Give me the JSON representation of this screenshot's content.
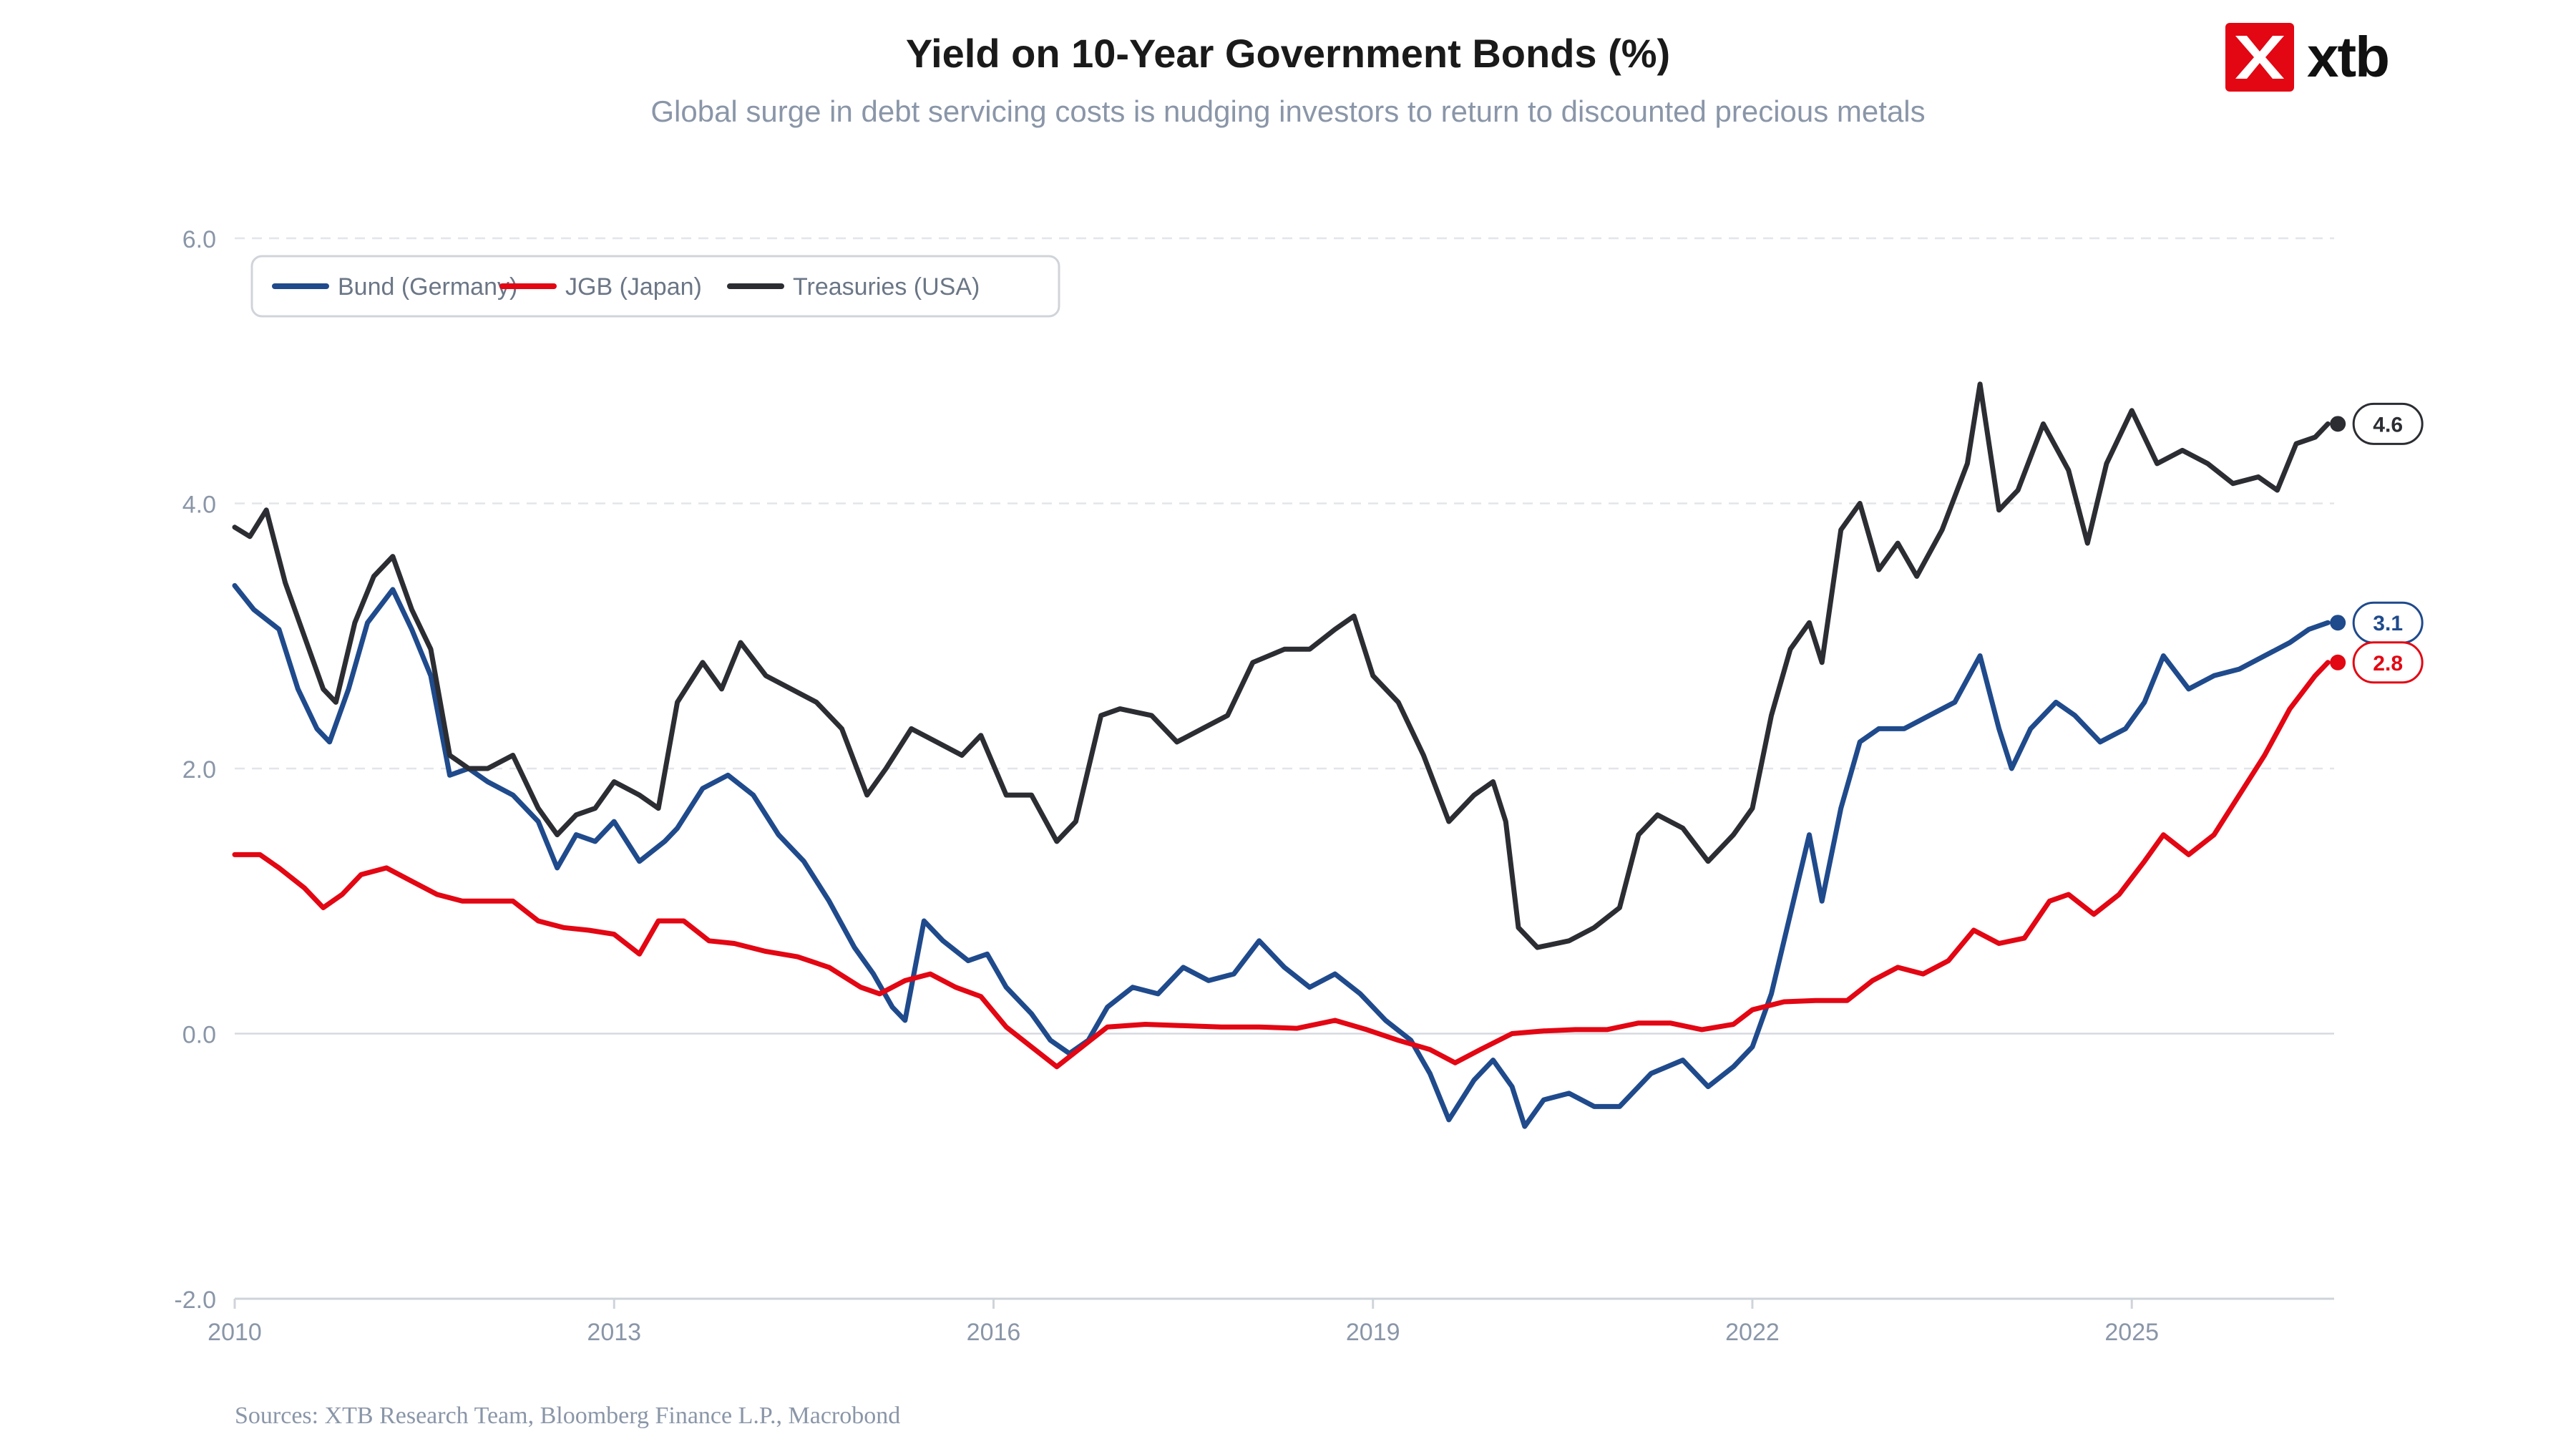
{
  "chart_data": {
    "type": "line",
    "title": "Yield on 10-Year Government Bonds (%)",
    "subtitle": "Global surge in debt servicing costs is nudging investors to return to discounted precious metals",
    "xlabel": "",
    "ylabel": "",
    "xlim": [
      2010.0,
      2026.6
    ],
    "ylim": [
      -2.0,
      6.0
    ],
    "x_ticks": [
      2010,
      2013,
      2016,
      2019,
      2022,
      2025
    ],
    "x_tick_labels": [
      "2010",
      "2013",
      "2016",
      "2019",
      "2022",
      "2025"
    ],
    "y_ticks": [
      -2,
      0,
      2,
      4,
      6
    ],
    "y_tick_labels": [
      "-2.0",
      "0.0",
      "2.0",
      "4.0",
      "6.0"
    ],
    "grid": true,
    "legend_position": "top-left",
    "series": [
      {
        "name": "Bund (Germany)",
        "color": "#1f4a8c",
        "end_label": "3.1",
        "points": [
          [
            2010.0,
            3.38
          ],
          [
            2010.15,
            3.2
          ],
          [
            2010.35,
            3.05
          ],
          [
            2010.5,
            2.6
          ],
          [
            2010.65,
            2.3
          ],
          [
            2010.75,
            2.2
          ],
          [
            2010.9,
            2.6
          ],
          [
            2011.05,
            3.1
          ],
          [
            2011.25,
            3.35
          ],
          [
            2011.4,
            3.05
          ],
          [
            2011.55,
            2.7
          ],
          [
            2011.7,
            1.95
          ],
          [
            2011.85,
            2.0
          ],
          [
            2012.0,
            1.9
          ],
          [
            2012.2,
            1.8
          ],
          [
            2012.4,
            1.6
          ],
          [
            2012.55,
            1.25
          ],
          [
            2012.7,
            1.5
          ],
          [
            2012.85,
            1.45
          ],
          [
            2013.0,
            1.6
          ],
          [
            2013.2,
            1.3
          ],
          [
            2013.4,
            1.45
          ],
          [
            2013.5,
            1.55
          ],
          [
            2013.7,
            1.85
          ],
          [
            2013.9,
            1.95
          ],
          [
            2014.1,
            1.8
          ],
          [
            2014.3,
            1.5
          ],
          [
            2014.5,
            1.3
          ],
          [
            2014.7,
            1.0
          ],
          [
            2014.9,
            0.65
          ],
          [
            2015.05,
            0.45
          ],
          [
            2015.2,
            0.2
          ],
          [
            2015.3,
            0.1
          ],
          [
            2015.45,
            0.85
          ],
          [
            2015.6,
            0.7
          ],
          [
            2015.8,
            0.55
          ],
          [
            2015.95,
            0.6
          ],
          [
            2016.1,
            0.35
          ],
          [
            2016.3,
            0.15
          ],
          [
            2016.45,
            -0.05
          ],
          [
            2016.6,
            -0.15
          ],
          [
            2016.75,
            -0.05
          ],
          [
            2016.9,
            0.2
          ],
          [
            2017.1,
            0.35
          ],
          [
            2017.3,
            0.3
          ],
          [
            2017.5,
            0.5
          ],
          [
            2017.7,
            0.4
          ],
          [
            2017.9,
            0.45
          ],
          [
            2018.1,
            0.7
          ],
          [
            2018.3,
            0.5
          ],
          [
            2018.5,
            0.35
          ],
          [
            2018.7,
            0.45
          ],
          [
            2018.9,
            0.3
          ],
          [
            2019.1,
            0.1
          ],
          [
            2019.3,
            -0.05
          ],
          [
            2019.45,
            -0.3
          ],
          [
            2019.6,
            -0.65
          ],
          [
            2019.8,
            -0.35
          ],
          [
            2019.95,
            -0.2
          ],
          [
            2020.1,
            -0.4
          ],
          [
            2020.2,
            -0.7
          ],
          [
            2020.35,
            -0.5
          ],
          [
            2020.55,
            -0.45
          ],
          [
            2020.75,
            -0.55
          ],
          [
            2020.95,
            -0.55
          ],
          [
            2021.2,
            -0.3
          ],
          [
            2021.45,
            -0.2
          ],
          [
            2021.65,
            -0.4
          ],
          [
            2021.85,
            -0.25
          ],
          [
            2022.0,
            -0.1
          ],
          [
            2022.15,
            0.3
          ],
          [
            2022.3,
            0.9
          ],
          [
            2022.45,
            1.5
          ],
          [
            2022.55,
            1.0
          ],
          [
            2022.7,
            1.7
          ],
          [
            2022.85,
            2.2
          ],
          [
            2023.0,
            2.3
          ],
          [
            2023.2,
            2.3
          ],
          [
            2023.4,
            2.4
          ],
          [
            2023.6,
            2.5
          ],
          [
            2023.8,
            2.85
          ],
          [
            2023.95,
            2.3
          ],
          [
            2024.05,
            2.0
          ],
          [
            2024.2,
            2.3
          ],
          [
            2024.4,
            2.5
          ],
          [
            2024.55,
            2.4
          ],
          [
            2024.75,
            2.2
          ],
          [
            2024.95,
            2.3
          ],
          [
            2025.1,
            2.5
          ],
          [
            2025.25,
            2.85
          ],
          [
            2025.45,
            2.6
          ],
          [
            2025.65,
            2.7
          ],
          [
            2025.85,
            2.75
          ],
          [
            2026.05,
            2.85
          ],
          [
            2026.25,
            2.95
          ],
          [
            2026.4,
            3.05
          ],
          [
            2026.55,
            3.1
          ]
        ]
      },
      {
        "name": "JGB (Japan)",
        "color": "#e30613",
        "end_label": "2.8",
        "points": [
          [
            2010.0,
            1.35
          ],
          [
            2010.2,
            1.35
          ],
          [
            2010.35,
            1.25
          ],
          [
            2010.55,
            1.1
          ],
          [
            2010.7,
            0.95
          ],
          [
            2010.85,
            1.05
          ],
          [
            2011.0,
            1.2
          ],
          [
            2011.2,
            1.25
          ],
          [
            2011.4,
            1.15
          ],
          [
            2011.6,
            1.05
          ],
          [
            2011.8,
            1.0
          ],
          [
            2012.0,
            1.0
          ],
          [
            2012.2,
            1.0
          ],
          [
            2012.4,
            0.85
          ],
          [
            2012.6,
            0.8
          ],
          [
            2012.8,
            0.78
          ],
          [
            2013.0,
            0.75
          ],
          [
            2013.2,
            0.6
          ],
          [
            2013.35,
            0.85
          ],
          [
            2013.55,
            0.85
          ],
          [
            2013.75,
            0.7
          ],
          [
            2013.95,
            0.68
          ],
          [
            2014.2,
            0.62
          ],
          [
            2014.45,
            0.58
          ],
          [
            2014.7,
            0.5
          ],
          [
            2014.95,
            0.35
          ],
          [
            2015.1,
            0.3
          ],
          [
            2015.3,
            0.4
          ],
          [
            2015.5,
            0.45
          ],
          [
            2015.7,
            0.35
          ],
          [
            2015.9,
            0.28
          ],
          [
            2016.1,
            0.05
          ],
          [
            2016.3,
            -0.1
          ],
          [
            2016.5,
            -0.25
          ],
          [
            2016.7,
            -0.1
          ],
          [
            2016.9,
            0.05
          ],
          [
            2017.2,
            0.07
          ],
          [
            2017.5,
            0.06
          ],
          [
            2017.8,
            0.05
          ],
          [
            2018.1,
            0.05
          ],
          [
            2018.4,
            0.04
          ],
          [
            2018.7,
            0.1
          ],
          [
            2018.95,
            0.03
          ],
          [
            2019.2,
            -0.05
          ],
          [
            2019.45,
            -0.12
          ],
          [
            2019.65,
            -0.22
          ],
          [
            2019.85,
            -0.12
          ],
          [
            2020.1,
            0.0
          ],
          [
            2020.35,
            0.02
          ],
          [
            2020.6,
            0.03
          ],
          [
            2020.85,
            0.03
          ],
          [
            2021.1,
            0.08
          ],
          [
            2021.35,
            0.08
          ],
          [
            2021.6,
            0.03
          ],
          [
            2021.85,
            0.07
          ],
          [
            2022.0,
            0.18
          ],
          [
            2022.25,
            0.24
          ],
          [
            2022.5,
            0.25
          ],
          [
            2022.75,
            0.25
          ],
          [
            2022.95,
            0.4
          ],
          [
            2023.15,
            0.5
          ],
          [
            2023.35,
            0.45
          ],
          [
            2023.55,
            0.55
          ],
          [
            2023.75,
            0.78
          ],
          [
            2023.95,
            0.68
          ],
          [
            2024.15,
            0.72
          ],
          [
            2024.35,
            1.0
          ],
          [
            2024.5,
            1.05
          ],
          [
            2024.7,
            0.9
          ],
          [
            2024.9,
            1.05
          ],
          [
            2025.1,
            1.3
          ],
          [
            2025.25,
            1.5
          ],
          [
            2025.45,
            1.35
          ],
          [
            2025.65,
            1.5
          ],
          [
            2025.85,
            1.8
          ],
          [
            2026.05,
            2.1
          ],
          [
            2026.25,
            2.45
          ],
          [
            2026.45,
            2.7
          ],
          [
            2026.55,
            2.8
          ]
        ]
      },
      {
        "name": "Treasuries (USA)",
        "color": "#2b2d33",
        "end_label": "4.6",
        "points": [
          [
            2010.0,
            3.82
          ],
          [
            2010.12,
            3.75
          ],
          [
            2010.25,
            3.95
          ],
          [
            2010.4,
            3.4
          ],
          [
            2010.55,
            3.0
          ],
          [
            2010.7,
            2.6
          ],
          [
            2010.8,
            2.5
          ],
          [
            2010.95,
            3.1
          ],
          [
            2011.1,
            3.45
          ],
          [
            2011.25,
            3.6
          ],
          [
            2011.4,
            3.2
          ],
          [
            2011.55,
            2.9
          ],
          [
            2011.7,
            2.1
          ],
          [
            2011.85,
            2.0
          ],
          [
            2012.0,
            2.0
          ],
          [
            2012.2,
            2.1
          ],
          [
            2012.4,
            1.7
          ],
          [
            2012.55,
            1.5
          ],
          [
            2012.7,
            1.65
          ],
          [
            2012.85,
            1.7
          ],
          [
            2013.0,
            1.9
          ],
          [
            2013.2,
            1.8
          ],
          [
            2013.35,
            1.7
          ],
          [
            2013.5,
            2.5
          ],
          [
            2013.7,
            2.8
          ],
          [
            2013.85,
            2.6
          ],
          [
            2014.0,
            2.95
          ],
          [
            2014.2,
            2.7
          ],
          [
            2014.4,
            2.6
          ],
          [
            2014.6,
            2.5
          ],
          [
            2014.8,
            2.3
          ],
          [
            2015.0,
            1.8
          ],
          [
            2015.15,
            2.0
          ],
          [
            2015.35,
            2.3
          ],
          [
            2015.55,
            2.2
          ],
          [
            2015.75,
            2.1
          ],
          [
            2015.9,
            2.25
          ],
          [
            2016.1,
            1.8
          ],
          [
            2016.3,
            1.8
          ],
          [
            2016.5,
            1.45
          ],
          [
            2016.65,
            1.6
          ],
          [
            2016.85,
            2.4
          ],
          [
            2017.0,
            2.45
          ],
          [
            2017.25,
            2.4
          ],
          [
            2017.45,
            2.2
          ],
          [
            2017.65,
            2.3
          ],
          [
            2017.85,
            2.4
          ],
          [
            2018.05,
            2.8
          ],
          [
            2018.3,
            2.9
          ],
          [
            2018.5,
            2.9
          ],
          [
            2018.7,
            3.05
          ],
          [
            2018.85,
            3.15
          ],
          [
            2019.0,
            2.7
          ],
          [
            2019.2,
            2.5
          ],
          [
            2019.4,
            2.1
          ],
          [
            2019.6,
            1.6
          ],
          [
            2019.8,
            1.8
          ],
          [
            2019.95,
            1.9
          ],
          [
            2020.05,
            1.6
          ],
          [
            2020.15,
            0.8
          ],
          [
            2020.3,
            0.65
          ],
          [
            2020.55,
            0.7
          ],
          [
            2020.75,
            0.8
          ],
          [
            2020.95,
            0.95
          ],
          [
            2021.1,
            1.5
          ],
          [
            2021.25,
            1.65
          ],
          [
            2021.45,
            1.55
          ],
          [
            2021.65,
            1.3
          ],
          [
            2021.85,
            1.5
          ],
          [
            2022.0,
            1.7
          ],
          [
            2022.15,
            2.4
          ],
          [
            2022.3,
            2.9
          ],
          [
            2022.45,
            3.1
          ],
          [
            2022.55,
            2.8
          ],
          [
            2022.7,
            3.8
          ],
          [
            2022.85,
            4.0
          ],
          [
            2023.0,
            3.5
          ],
          [
            2023.15,
            3.7
          ],
          [
            2023.3,
            3.45
          ],
          [
            2023.5,
            3.8
          ],
          [
            2023.7,
            4.3
          ],
          [
            2023.8,
            4.9
          ],
          [
            2023.95,
            3.95
          ],
          [
            2024.1,
            4.1
          ],
          [
            2024.3,
            4.6
          ],
          [
            2024.5,
            4.25
          ],
          [
            2024.65,
            3.7
          ],
          [
            2024.8,
            4.3
          ],
          [
            2025.0,
            4.7
          ],
          [
            2025.2,
            4.3
          ],
          [
            2025.4,
            4.4
          ],
          [
            2025.6,
            4.3
          ],
          [
            2025.8,
            4.15
          ],
          [
            2026.0,
            4.2
          ],
          [
            2026.15,
            4.1
          ],
          [
            2026.3,
            4.45
          ],
          [
            2026.45,
            4.5
          ],
          [
            2026.55,
            4.6
          ]
        ]
      }
    ]
  },
  "logo": {
    "text": "xtb",
    "color": "#e30613"
  },
  "source": "Sources: XTB Research Team, Bloomberg Finance L.P., Macrobond"
}
